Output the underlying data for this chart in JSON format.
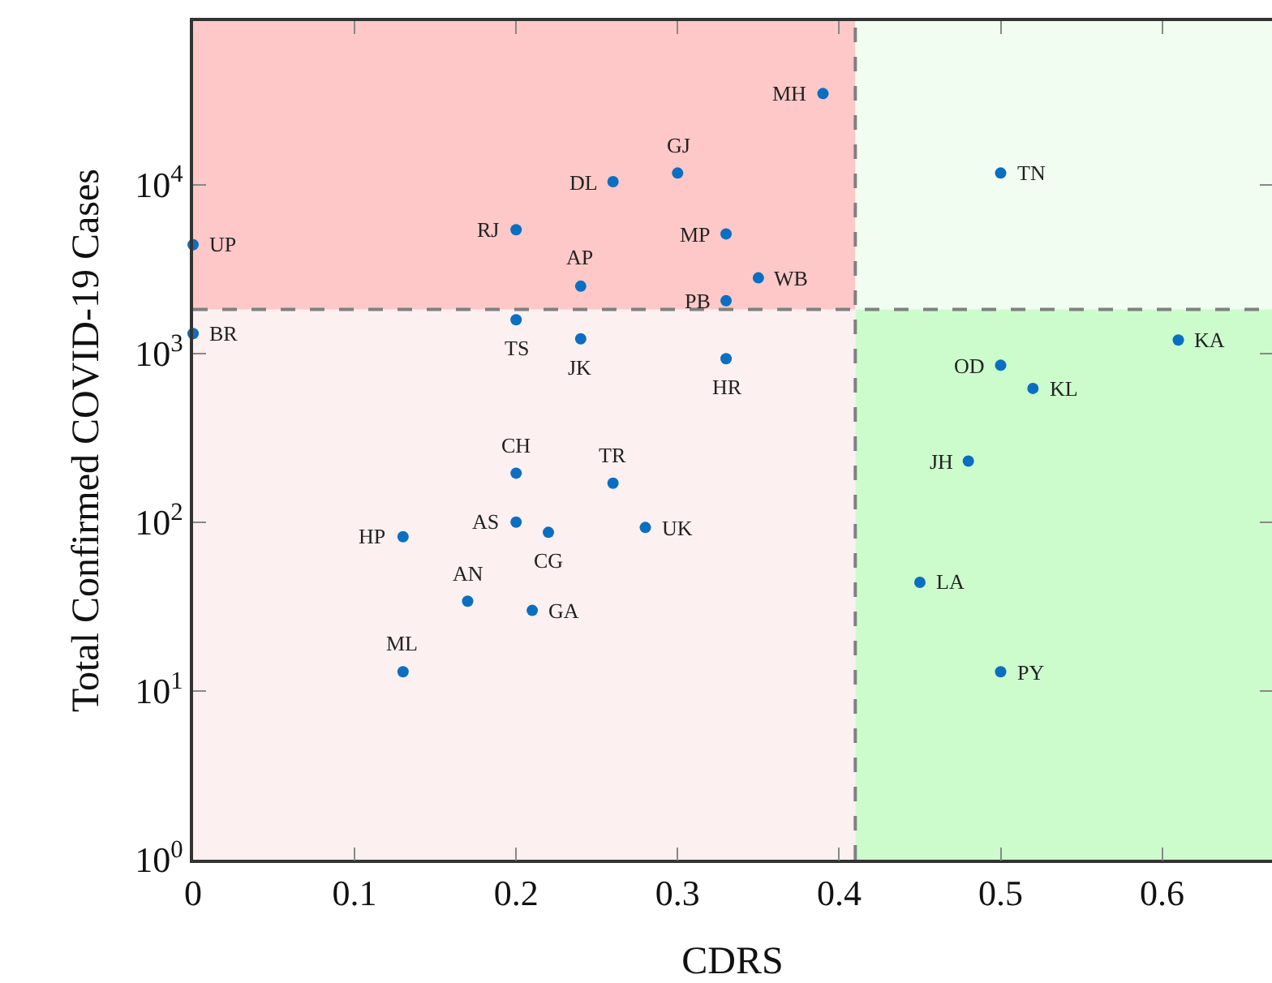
{
  "chart_data": {
    "type": "scatter",
    "xlabel": "CDRS",
    "ylabel": "Total Confirmed COVID-19 Cases",
    "log": "y",
    "marker": "circle",
    "xlim": [
      0,
      0.668
    ],
    "xticks": [
      0,
      0.1,
      0.2,
      0.3,
      0.4,
      0.5,
      0.6
    ],
    "ylim": [
      1,
      93000
    ],
    "yticks": [
      {
        "value": 1,
        "label": "10$^{0}$"
      },
      {
        "value": 10,
        "label": "10$^{1}$"
      },
      {
        "value": 100,
        "label": "10$^{2}$"
      },
      {
        "value": 1000,
        "label": "10$^{3}$"
      },
      {
        "value": 10000,
        "label": "10$^{4}$"
      }
    ],
    "x": [
      0.39,
      0.3,
      0.26,
      0.2,
      0.33,
      0.0,
      0.24,
      0.35,
      0.33,
      0.2,
      0.0,
      0.24,
      0.33,
      0.2,
      0.26,
      0.2,
      0.22,
      0.28,
      0.13,
      0.17,
      0.21,
      0.13,
      0.5,
      0.61,
      0.5,
      0.52,
      0.48,
      0.45,
      0.5
    ],
    "series": [
      {
        "color": "#0a6fc2",
        "values": [
          34600,
          11700,
          10400,
          5400,
          5100,
          4400,
          2500,
          2800,
          2050,
          1580,
          1310,
          1220,
          930,
          195,
          170,
          100,
          87,
          93,
          82,
          34,
          30,
          13,
          11700,
          1200,
          850,
          620,
          230,
          44,
          13
        ]
      }
    ],
    "bands": [
      {
        "axis": "x",
        "from": 0,
        "to": 0.41,
        "color": "#fdf0f0"
      },
      {
        "axis": "x",
        "from": 0.41,
        "to": 0.668,
        "color": "#ccfccc"
      },
      {
        "axis": "y",
        "from": 1820,
        "to": 93000,
        "color": "#ffc8c8"
      },
      {
        "axis": "y",
        "from": 1820,
        "to": 93000,
        "color": "#f0fdf0"
      }
    ],
    "ref_lines": [
      {
        "axis": "x",
        "value": 0.41,
        "color": "#808080",
        "line_style": "dashed"
      },
      {
        "axis": "y",
        "value": 1820,
        "color": "#808080",
        "line_style": "dashed"
      }
    ],
    "annotations": [
      {
        "text": "MH",
        "x": 0.39,
        "y": 34600
      },
      {
        "text": "GJ",
        "x": 0.3,
        "y": 11700
      },
      {
        "text": "DL",
        "x": 0.26,
        "y": 10400
      },
      {
        "text": "RJ",
        "x": 0.2,
        "y": 5400
      },
      {
        "text": "MP",
        "x": 0.33,
        "y": 5100
      },
      {
        "text": "UP",
        "x": 0.0,
        "y": 4400
      },
      {
        "text": "AP",
        "x": 0.24,
        "y": 2500
      },
      {
        "text": "WB",
        "x": 0.35,
        "y": 2800
      },
      {
        "text": "PB",
        "x": 0.33,
        "y": 2050
      },
      {
        "text": "TS",
        "x": 0.2,
        "y": 1580
      },
      {
        "text": "BR",
        "x": 0.0,
        "y": 1310
      },
      {
        "text": "JK",
        "x": 0.24,
        "y": 1220
      },
      {
        "text": "HR",
        "x": 0.33,
        "y": 930
      },
      {
        "text": "CH",
        "x": 0.2,
        "y": 195
      },
      {
        "text": "TR",
        "x": 0.26,
        "y": 170
      },
      {
        "text": "AS",
        "x": 0.2,
        "y": 100
      },
      {
        "text": "CG",
        "x": 0.22,
        "y": 87
      },
      {
        "text": "UK",
        "x": 0.28,
        "y": 93
      },
      {
        "text": "HP",
        "x": 0.13,
        "y": 82
      },
      {
        "text": "AN",
        "x": 0.17,
        "y": 34
      },
      {
        "text": "GA",
        "x": 0.21,
        "y": 30
      },
      {
        "text": "ML",
        "x": 0.13,
        "y": 13
      },
      {
        "text": "TN",
        "x": 0.5,
        "y": 11700
      },
      {
        "text": "KA",
        "x": 0.61,
        "y": 1200
      },
      {
        "text": "OD",
        "x": 0.5,
        "y": 850
      },
      {
        "text": "KL",
        "x": 0.52,
        "y": 620
      },
      {
        "text": "JH",
        "x": 0.48,
        "y": 230
      },
      {
        "text": "LA",
        "x": 0.45,
        "y": 44
      },
      {
        "text": "PY",
        "x": 0.5,
        "y": 13
      }
    ]
  }
}
